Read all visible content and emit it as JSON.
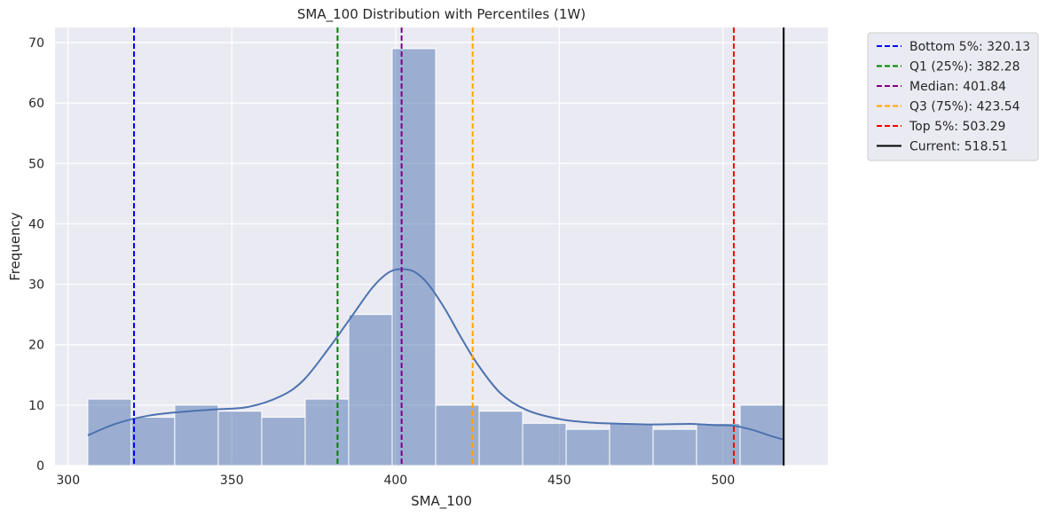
{
  "chart_data": {
    "type": "bar",
    "title": "SMA_100 Distribution with Percentiles (1W)",
    "xlabel": "SMA_100",
    "ylabel": "Frequency",
    "xlim": [
      296,
      532
    ],
    "ylim": [
      0,
      72.5
    ],
    "x_ticks": [
      300,
      350,
      400,
      450,
      500
    ],
    "y_ticks": [
      0,
      10,
      20,
      30,
      40,
      50,
      60,
      70
    ],
    "grid": true,
    "legend_position": "outside top-right",
    "histogram": {
      "bin_start": 306.0,
      "bin_width": 13.28,
      "counts": [
        11,
        8,
        10,
        9,
        8,
        11,
        25,
        69,
        10,
        9,
        7,
        6,
        7,
        6,
        7,
        10
      ],
      "color": "#4c72b0"
    },
    "kde": {
      "x": [
        306,
        315,
        325,
        335,
        345,
        355,
        365,
        372,
        380,
        387,
        393,
        398,
        402,
        406,
        410,
        415,
        420,
        425,
        432,
        440,
        450,
        460,
        470,
        480,
        490,
        497,
        503,
        509,
        514,
        518.5
      ],
      "y": [
        5.0,
        7.0,
        8.3,
        8.9,
        9.3,
        9.7,
        11.5,
        14.2,
        19.7,
        25.0,
        29.5,
        32.0,
        32.5,
        32.0,
        30.0,
        26.0,
        21.2,
        16.8,
        12.0,
        9.2,
        7.7,
        7.1,
        6.9,
        6.8,
        6.9,
        6.7,
        6.6,
        5.9,
        5.0,
        4.3
      ],
      "color": "#4c72b0"
    },
    "reference_lines": [
      {
        "label": "Bottom 5%: 320.13",
        "value": 320.13,
        "color": "#0000ff",
        "style": "dashed"
      },
      {
        "label": "Q1 (25%): 382.28",
        "value": 382.28,
        "color": "#008000",
        "style": "dashed"
      },
      {
        "label": "Median: 401.84",
        "value": 401.84,
        "color": "#800080",
        "style": "dashed"
      },
      {
        "label": "Q3 (75%): 423.54",
        "value": 423.54,
        "color": "#ffa500",
        "style": "dashed"
      },
      {
        "label": "Top 5%: 503.29",
        "value": 503.29,
        "color": "#ff0000",
        "style": "dashed"
      },
      {
        "label": "Current: 518.51",
        "value": 518.51,
        "color": "#000000",
        "style": "solid"
      }
    ],
    "background_color": "#eaeaf2",
    "grid_color": "#ffffff"
  }
}
